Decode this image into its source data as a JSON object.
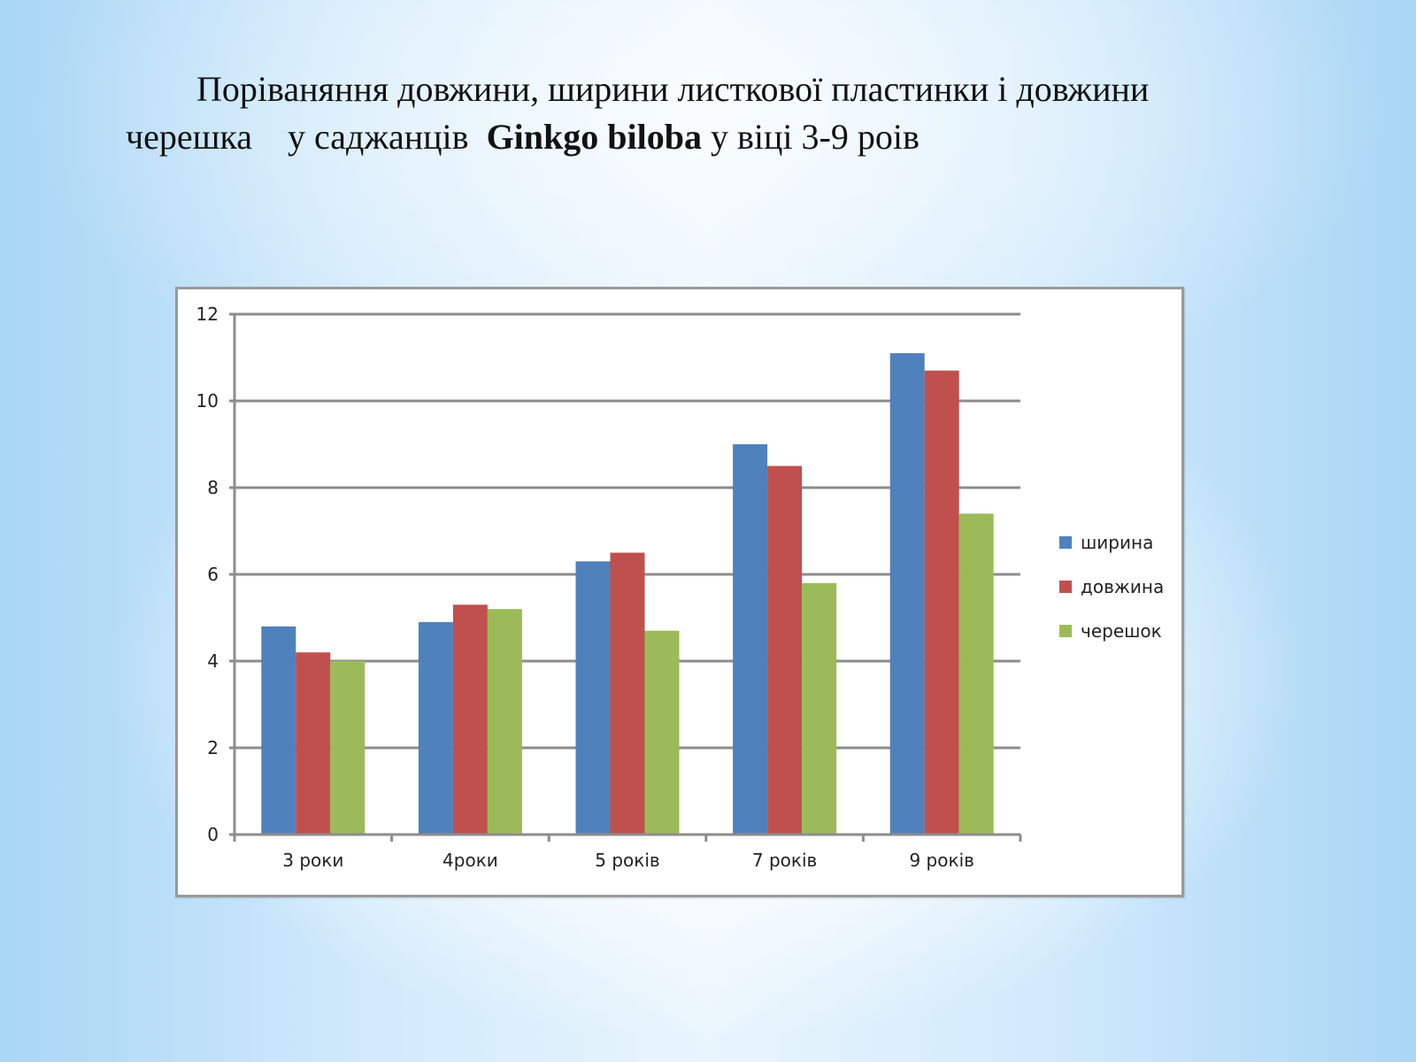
{
  "slide": {
    "title_line1": "Поріваняння довжини, ширини листкової пластинки і довжини",
    "title_line2_pre": "черешка    у саджанців  ",
    "title_line2_bold": "Ginkgo biloba",
    "title_line2_post": " у віці 3-9 роів"
  },
  "chart_data": {
    "type": "bar",
    "title": "",
    "xlabel": "",
    "ylabel": "",
    "categories": [
      "3 роки",
      "4роки",
      "5 років",
      "7 років",
      "9 років"
    ],
    "series": [
      {
        "name": "ширина",
        "color": "#4f81bd",
        "values": [
          4.8,
          4.9,
          6.3,
          9.0,
          11.1
        ]
      },
      {
        "name": "довжина",
        "color": "#c0504d",
        "values": [
          4.2,
          5.3,
          6.5,
          8.5,
          10.7
        ]
      },
      {
        "name": "черешок",
        "color": "#9bbb59",
        "values": [
          4.0,
          5.2,
          4.7,
          5.8,
          7.4
        ]
      }
    ],
    "ylim": [
      0,
      12
    ],
    "yticks": [
      0,
      2,
      4,
      6,
      8,
      10,
      12
    ],
    "grid": true,
    "legend_position": "right"
  }
}
